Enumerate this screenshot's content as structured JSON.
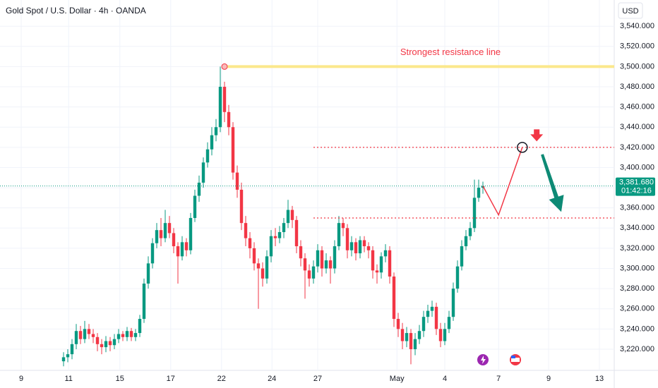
{
  "chart_data": {
    "type": "candlestick",
    "title": "Gold Spot / U.S. Dollar · 4h · OANDA",
    "currency": "USD",
    "up_color": "#089981",
    "down_color": "#f23645",
    "xlim": [
      0,
      145
    ],
    "ylim": [
      3199,
      3566
    ],
    "grid": true,
    "yticks": [
      {
        "value": 3220,
        "label": "3,220.000"
      },
      {
        "value": 3240,
        "label": "3,240.000"
      },
      {
        "value": 3260,
        "label": "3,260.000"
      },
      {
        "value": 3280,
        "label": "3,280.000"
      },
      {
        "value": 3300,
        "label": "3,300.000"
      },
      {
        "value": 3320,
        "label": "3,320.000"
      },
      {
        "value": 3340,
        "label": "3,340.000"
      },
      {
        "value": 3360,
        "label": "3,360.000"
      },
      {
        "value": 3380,
        "label": "3,380.000"
      },
      {
        "value": 3400,
        "label": "3,400.000"
      },
      {
        "value": 3420,
        "label": "3,420.000"
      },
      {
        "value": 3440,
        "label": "3,440.000"
      },
      {
        "value": 3460,
        "label": "3,460.000"
      },
      {
        "value": 3480,
        "label": "3,480.000"
      },
      {
        "value": 3500,
        "label": "3,500.000"
      },
      {
        "value": 3520,
        "label": "3,520.000"
      },
      {
        "value": 3540,
        "label": "3,540.000"
      }
    ],
    "xticks": [
      {
        "value": 5,
        "label": "9"
      },
      {
        "value": 16.2,
        "label": "11"
      },
      {
        "value": 28.3,
        "label": "15"
      },
      {
        "value": 40.3,
        "label": "17"
      },
      {
        "value": 52.3,
        "label": "22"
      },
      {
        "value": 64.2,
        "label": "24"
      },
      {
        "value": 75,
        "label": "27"
      },
      {
        "value": 93.7,
        "label": "May"
      },
      {
        "value": 105,
        "label": "4"
      },
      {
        "value": 117.7,
        "label": "7"
      },
      {
        "value": 129.5,
        "label": "9"
      },
      {
        "value": 141.5,
        "label": "13"
      }
    ],
    "x": [
      15,
      16,
      17,
      18,
      19,
      20,
      21,
      22,
      23,
      24,
      25,
      26,
      27,
      28,
      29,
      30,
      31,
      32,
      33,
      34,
      35,
      36,
      37,
      38,
      39,
      40,
      41,
      42,
      43,
      44,
      45,
      46,
      47,
      48,
      49,
      50,
      51,
      52,
      53,
      54,
      55,
      56,
      57,
      58,
      59,
      60,
      61,
      62,
      63,
      64,
      65,
      66,
      67,
      68,
      69,
      70,
      71,
      72,
      73,
      74,
      75,
      76,
      77,
      78,
      79,
      80,
      81,
      82,
      83,
      84,
      85,
      86,
      87,
      88,
      89,
      90,
      91,
      92,
      93,
      94,
      95,
      96,
      97,
      98,
      99,
      100,
      101,
      102,
      103,
      104,
      105,
      106,
      107,
      108,
      109,
      110,
      111,
      112,
      113,
      114
    ],
    "ohlc": [
      [
        3208,
        3217,
        3203,
        3212
      ],
      [
        3212,
        3220,
        3207,
        3215
      ],
      [
        3215,
        3230,
        3210,
        3225
      ],
      [
        3225,
        3245,
        3220,
        3238
      ],
      [
        3238,
        3243,
        3225,
        3230
      ],
      [
        3230,
        3248,
        3226,
        3240
      ],
      [
        3240,
        3245,
        3230,
        3235
      ],
      [
        3235,
        3240,
        3226,
        3232
      ],
      [
        3232,
        3236,
        3218,
        3225
      ],
      [
        3225,
        3230,
        3215,
        3222
      ],
      [
        3222,
        3233,
        3217,
        3228
      ],
      [
        3228,
        3232,
        3218,
        3224
      ],
      [
        3224,
        3235,
        3220,
        3230
      ],
      [
        3230,
        3240,
        3226,
        3235
      ],
      [
        3235,
        3238,
        3228,
        3232
      ],
      [
        3232,
        3242,
        3228,
        3238
      ],
      [
        3238,
        3241,
        3228,
        3232
      ],
      [
        3232,
        3240,
        3228,
        3236
      ],
      [
        3236,
        3254,
        3232,
        3250
      ],
      [
        3250,
        3290,
        3246,
        3285
      ],
      [
        3285,
        3312,
        3280,
        3305
      ],
      [
        3305,
        3330,
        3300,
        3325
      ],
      [
        3325,
        3345,
        3320,
        3338
      ],
      [
        3338,
        3350,
        3322,
        3330
      ],
      [
        3330,
        3358,
        3326,
        3345
      ],
      [
        3345,
        3352,
        3330,
        3335
      ],
      [
        3335,
        3340,
        3315,
        3322
      ],
      [
        3322,
        3326,
        3285,
        3312
      ],
      [
        3312,
        3332,
        3308,
        3326
      ],
      [
        3326,
        3330,
        3312,
        3318
      ],
      [
        3318,
        3355,
        3314,
        3350
      ],
      [
        3350,
        3378,
        3346,
        3372
      ],
      [
        3372,
        3392,
        3366,
        3385
      ],
      [
        3385,
        3410,
        3380,
        3405
      ],
      [
        3405,
        3425,
        3400,
        3418
      ],
      [
        3418,
        3440,
        3412,
        3432
      ],
      [
        3432,
        3448,
        3426,
        3440
      ],
      [
        3440,
        3500,
        3435,
        3480
      ],
      [
        3480,
        3485,
        3445,
        3455
      ],
      [
        3455,
        3462,
        3432,
        3440
      ],
      [
        3440,
        3445,
        3388,
        3395
      ],
      [
        3395,
        3402,
        3370,
        3378
      ],
      [
        3378,
        3385,
        3338,
        3345
      ],
      [
        3345,
        3352,
        3322,
        3330
      ],
      [
        3330,
        3336,
        3310,
        3320
      ],
      [
        3320,
        3326,
        3298,
        3305
      ],
      [
        3305,
        3310,
        3260,
        3300
      ],
      [
        3300,
        3306,
        3282,
        3290
      ],
      [
        3290,
        3318,
        3285,
        3312
      ],
      [
        3312,
        3338,
        3306,
        3332
      ],
      [
        3332,
        3340,
        3322,
        3330
      ],
      [
        3330,
        3342,
        3325,
        3336
      ],
      [
        3336,
        3350,
        3330,
        3345
      ],
      [
        3345,
        3368,
        3340,
        3358
      ],
      [
        3358,
        3362,
        3340,
        3348
      ],
      [
        3348,
        3352,
        3315,
        3322
      ],
      [
        3322,
        3328,
        3302,
        3310
      ],
      [
        3310,
        3315,
        3270,
        3298
      ],
      [
        3298,
        3304,
        3282,
        3290
      ],
      [
        3290,
        3308,
        3285,
        3302
      ],
      [
        3302,
        3324,
        3296,
        3318
      ],
      [
        3318,
        3322,
        3292,
        3300
      ],
      [
        3300,
        3315,
        3295,
        3308
      ],
      [
        3308,
        3312,
        3285,
        3300
      ],
      [
        3300,
        3328,
        3295,
        3322
      ],
      [
        3322,
        3352,
        3318,
        3345
      ],
      [
        3345,
        3350,
        3332,
        3340
      ],
      [
        3340,
        3344,
        3310,
        3318
      ],
      [
        3318,
        3332,
        3312,
        3326
      ],
      [
        3326,
        3330,
        3308,
        3315
      ],
      [
        3315,
        3332,
        3310,
        3328
      ],
      [
        3328,
        3332,
        3316,
        3322
      ],
      [
        3322,
        3326,
        3310,
        3318
      ],
      [
        3318,
        3322,
        3290,
        3298
      ],
      [
        3298,
        3304,
        3285,
        3296
      ],
      [
        3296,
        3316,
        3290,
        3312
      ],
      [
        3312,
        3324,
        3306,
        3318
      ],
      [
        3318,
        3322,
        3285,
        3292
      ],
      [
        3292,
        3296,
        3242,
        3250
      ],
      [
        3250,
        3256,
        3232,
        3240
      ],
      [
        3240,
        3246,
        3220,
        3228
      ],
      [
        3228,
        3242,
        3222,
        3236
      ],
      [
        3236,
        3240,
        3205,
        3220
      ],
      [
        3220,
        3236,
        3214,
        3230
      ],
      [
        3230,
        3244,
        3225,
        3238
      ],
      [
        3238,
        3258,
        3232,
        3252
      ],
      [
        3252,
        3264,
        3246,
        3258
      ],
      [
        3258,
        3268,
        3252,
        3262
      ],
      [
        3262,
        3266,
        3234,
        3240
      ],
      [
        3240,
        3246,
        3222,
        3228
      ],
      [
        3228,
        3246,
        3224,
        3240
      ],
      [
        3240,
        3258,
        3236,
        3252
      ],
      [
        3252,
        3286,
        3248,
        3280
      ],
      [
        3280,
        3308,
        3276,
        3302
      ],
      [
        3302,
        3328,
        3298,
        3322
      ],
      [
        3322,
        3338,
        3318,
        3332
      ],
      [
        3332,
        3346,
        3328,
        3340
      ],
      [
        3340,
        3388,
        3336,
        3370
      ],
      [
        3370,
        3388,
        3366,
        3380
      ],
      [
        3380,
        3386,
        3374,
        3381.68
      ]
    ],
    "last_price": {
      "value": 3381.68,
      "label": "3,381.680",
      "countdown": "01:42:16"
    },
    "resistance": {
      "value": 3500,
      "from_x": 53,
      "label": "Strongest resistance line"
    },
    "levels": [
      {
        "value": 3420,
        "from_x": 74
      },
      {
        "value": 3350,
        "from_x": 74
      }
    ],
    "projection": {
      "x": [
        114,
        117.7,
        123.3
      ],
      "values": [
        3381.68,
        3353,
        3420
      ]
    },
    "down_arrow": {
      "x": [
        128,
        132.5
      ],
      "values": [
        3413,
        3356
      ]
    },
    "sell_marker": {
      "x": 126.7,
      "value": 3428
    }
  }
}
